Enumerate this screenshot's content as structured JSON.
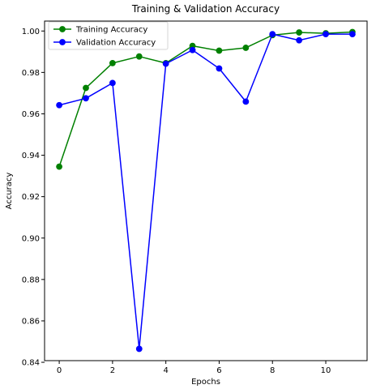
{
  "chart_data": {
    "type": "line",
    "title": "Training & Validation Accuracy",
    "xlabel": "Epochs",
    "ylabel": "Accuracy",
    "x": [
      0,
      1,
      2,
      3,
      4,
      5,
      6,
      7,
      8,
      9,
      10,
      11
    ],
    "xlim": [
      -0.55,
      11.55
    ],
    "ylim": [
      0.8408,
      1.0048
    ],
    "xticks": [
      0,
      2,
      4,
      6,
      8,
      10
    ],
    "yticks": [
      0.84,
      0.86,
      0.88,
      0.9,
      0.92,
      0.94,
      0.96,
      0.98,
      1.0
    ],
    "xtick_labels": [
      "0",
      "2",
      "4",
      "6",
      "8",
      "10"
    ],
    "ytick_labels": [
      "0.84",
      "0.86",
      "0.88",
      "0.90",
      "0.92",
      "0.94",
      "0.96",
      "0.98",
      "1.00"
    ],
    "grid": false,
    "legend": {
      "placement": "top-left"
    },
    "series": [
      {
        "name": "Training Accuracy",
        "color": "#008000",
        "marker": "circle",
        "values": [
          0.9345,
          0.9725,
          0.9845,
          0.9877,
          0.9845,
          0.9928,
          0.9905,
          0.9919,
          0.998,
          0.9993,
          0.9989,
          0.9995
        ]
      },
      {
        "name": "Validation Accuracy",
        "color": "#0000ff",
        "marker": "circle",
        "values": [
          0.9642,
          0.9675,
          0.9749,
          0.8465,
          0.9842,
          0.9908,
          0.9819,
          0.9659,
          0.9985,
          0.9955,
          0.9985,
          0.9985
        ]
      }
    ]
  }
}
